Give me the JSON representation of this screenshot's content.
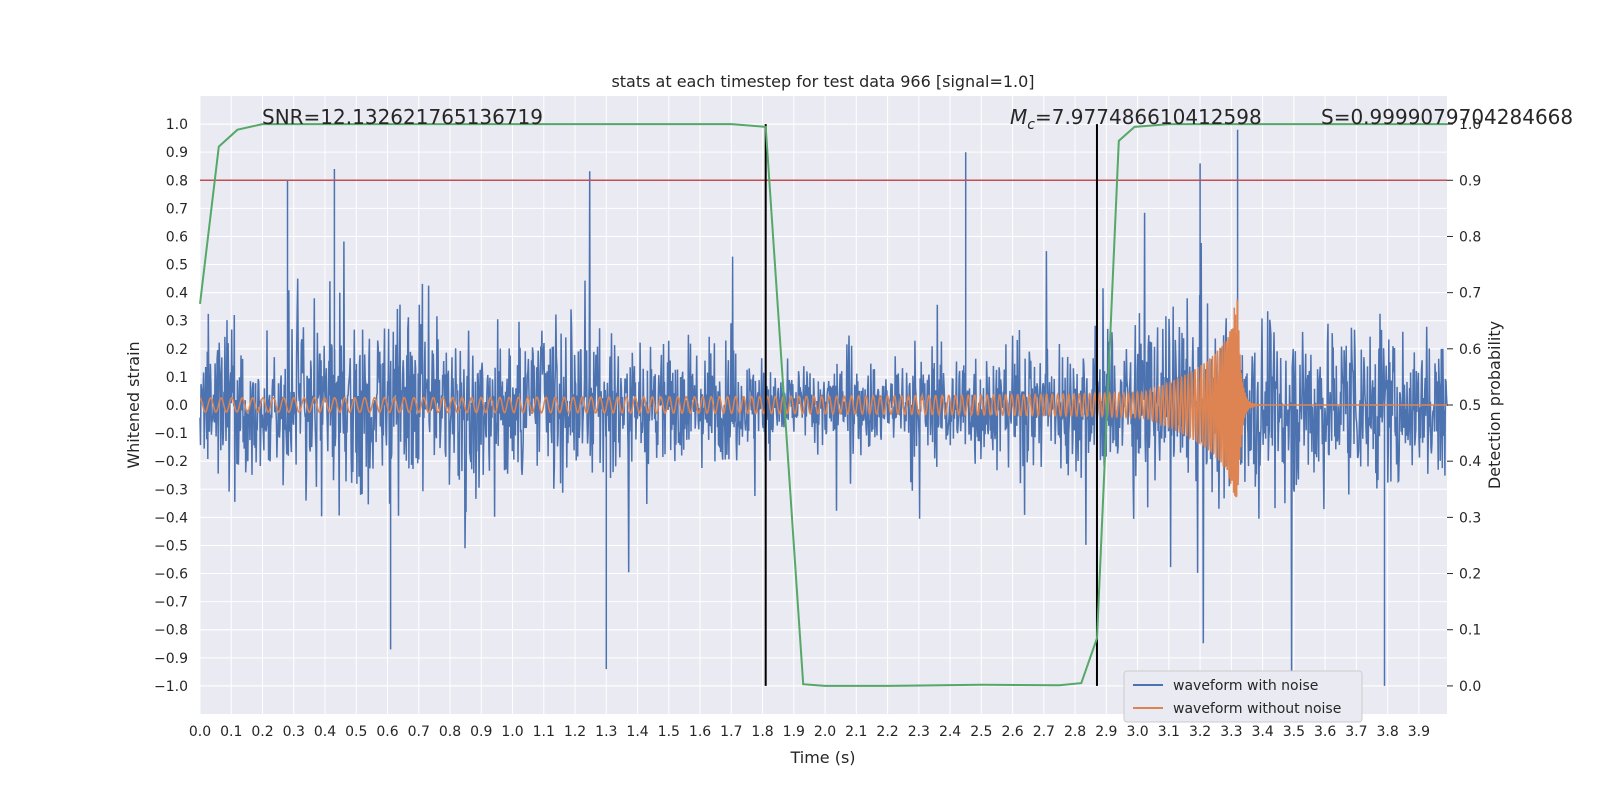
{
  "chart_data": {
    "type": "line",
    "title": "stats at each timestep for test data 966 [signal=1.0]",
    "xlabel": "Time (s)",
    "ylabel": "Whitened strain",
    "y2label": "Detection probability",
    "xlim": [
      0.0,
      3.99
    ],
    "ylim": [
      -1.1,
      1.1
    ],
    "y2lim": [
      -0.05,
      1.05
    ],
    "xticks": [
      "0.0",
      "0.1",
      "0.2",
      "0.3",
      "0.4",
      "0.5",
      "0.6",
      "0.7",
      "0.8",
      "0.9",
      "1.0",
      "1.1",
      "1.2",
      "1.3",
      "1.4",
      "1.5",
      "1.6",
      "1.7",
      "1.8",
      "1.9",
      "2.0",
      "2.1",
      "2.2",
      "2.3",
      "2.4",
      "2.5",
      "2.6",
      "2.7",
      "2.8",
      "2.9",
      "3.0",
      "3.1",
      "3.2",
      "3.3",
      "3.4",
      "3.5",
      "3.6",
      "3.7",
      "3.8",
      "3.9"
    ],
    "yticks": [
      "1.0",
      "0.9",
      "0.8",
      "0.7",
      "0.6",
      "0.5",
      "0.4",
      "0.3",
      "0.2",
      "0.1",
      "0.0",
      "−0.1",
      "−0.2",
      "−0.3",
      "−0.4",
      "−0.5",
      "−0.6",
      "−0.7",
      "−0.8",
      "−0.9",
      "−1.0"
    ],
    "y2ticks": [
      "1.0",
      "0.9",
      "0.8",
      "0.7",
      "0.6",
      "0.5",
      "0.4",
      "0.3",
      "0.2",
      "0.1",
      "0.0"
    ],
    "grid": true,
    "annotations": {
      "snr": "SNR=12.132621765136719",
      "mc_symbol": "M",
      "mc_subscript": "c",
      "mc_value": "=7.977486610412598",
      "s": "S=0.9999079704284668"
    },
    "threshold": {
      "axis": "y2",
      "value": 0.9,
      "color": "#c44e52"
    },
    "vlines": [
      {
        "x": 1.81,
        "color": "#000000"
      },
      {
        "x": 2.87,
        "color": "#000000"
      }
    ],
    "series": [
      {
        "name": "waveform with noise",
        "color": "#4c72b0",
        "kind": "noise",
        "x_range": [
          0.0,
          3.99
        ],
        "amplitude_envelope": [
          0.45,
          0.85
        ],
        "min_peak": -1.0,
        "max_peak": 0.98
      },
      {
        "name": "waveform without noise",
        "color": "#dd8452",
        "kind": "chirp",
        "merger_time": 3.32,
        "start_amplitude": 0.025,
        "peak_amplitude": 0.38,
        "start_period": 0.034
      },
      {
        "name": "detection probability",
        "color": "#55a868",
        "axis": "y2",
        "in_legend": false,
        "x": [
          0.0,
          0.06,
          0.12,
          0.2,
          0.3,
          1.7,
          1.81,
          1.93,
          2.0,
          2.2,
          2.5,
          2.75,
          2.82,
          2.87,
          2.94,
          2.99,
          3.1,
          3.5,
          3.99
        ],
        "y": [
          0.68,
          0.96,
          0.99,
          1.0,
          1.0,
          1.0,
          0.995,
          0.003,
          0.0,
          0.0,
          0.002,
          0.001,
          0.005,
          0.085,
          0.97,
          0.995,
          1.0,
          1.0,
          1.0
        ]
      }
    ],
    "legend": {
      "location": "lower-right",
      "entries": [
        "waveform with noise",
        "waveform without noise"
      ]
    }
  }
}
